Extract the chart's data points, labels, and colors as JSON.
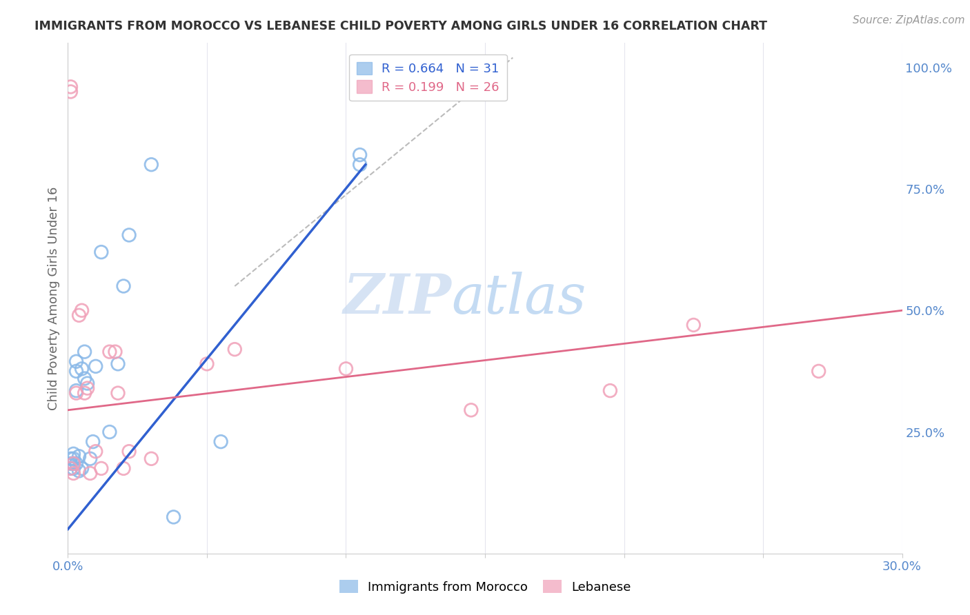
{
  "title": "IMMIGRANTS FROM MOROCCO VS LEBANESE CHILD POVERTY AMONG GIRLS UNDER 16 CORRELATION CHART",
  "source": "Source: ZipAtlas.com",
  "ylabel": "Child Poverty Among Girls Under 16",
  "legend_blue_r": "R = 0.664",
  "legend_blue_n": "N = 31",
  "legend_pink_r": "R = 0.199",
  "legend_pink_n": "N = 26",
  "blue_scatter_x": [
    0.001,
    0.001,
    0.001,
    0.002,
    0.002,
    0.002,
    0.002,
    0.003,
    0.003,
    0.003,
    0.003,
    0.004,
    0.004,
    0.005,
    0.005,
    0.006,
    0.006,
    0.007,
    0.008,
    0.009,
    0.01,
    0.012,
    0.015,
    0.018,
    0.02,
    0.022,
    0.03,
    0.038,
    0.055,
    0.105,
    0.105
  ],
  "blue_scatter_y": [
    0.175,
    0.185,
    0.195,
    0.175,
    0.185,
    0.195,
    0.205,
    0.185,
    0.335,
    0.375,
    0.395,
    0.17,
    0.2,
    0.175,
    0.38,
    0.36,
    0.415,
    0.35,
    0.195,
    0.23,
    0.385,
    0.62,
    0.25,
    0.39,
    0.55,
    0.655,
    0.8,
    0.075,
    0.23,
    0.8,
    0.82
  ],
  "pink_scatter_x": [
    0.001,
    0.001,
    0.001,
    0.002,
    0.002,
    0.003,
    0.004,
    0.005,
    0.006,
    0.007,
    0.008,
    0.01,
    0.012,
    0.015,
    0.017,
    0.018,
    0.02,
    0.022,
    0.03,
    0.05,
    0.06,
    0.1,
    0.145,
    0.195,
    0.225,
    0.27
  ],
  "pink_scatter_y": [
    0.95,
    0.96,
    0.175,
    0.185,
    0.165,
    0.33,
    0.49,
    0.5,
    0.33,
    0.34,
    0.165,
    0.21,
    0.175,
    0.415,
    0.415,
    0.33,
    0.175,
    0.21,
    0.195,
    0.39,
    0.42,
    0.38,
    0.295,
    0.335,
    0.47,
    0.375
  ],
  "watermark_zip": "ZIP",
  "watermark_atlas": "atlas",
  "xlim": [
    0.0,
    0.3
  ],
  "ylim": [
    0.0,
    1.05
  ],
  "right_yticks": [
    0.25,
    0.5,
    0.75,
    1.0
  ],
  "right_yticklabels": [
    "25.0%",
    "50.0%",
    "75.0%",
    "100.0%"
  ],
  "background_color": "#ffffff",
  "blue_scatter_color": "#89b8e8",
  "pink_scatter_color": "#f0a0b8",
  "blue_line_color": "#3060d0",
  "pink_line_color": "#e06888",
  "dashed_line_color": "#bbbbbb",
  "grid_color": "#e5e5ee",
  "title_color": "#333333",
  "axis_label_color": "#666666",
  "tick_color": "#5588cc"
}
